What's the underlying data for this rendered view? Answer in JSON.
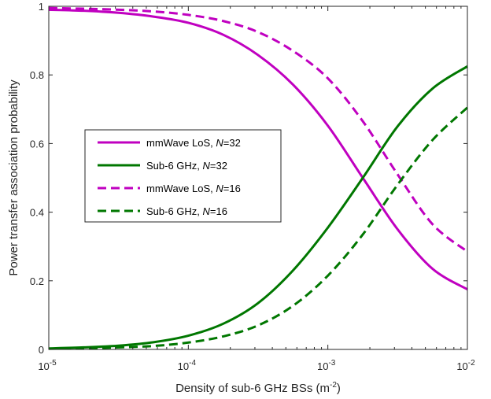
{
  "chart_data": {
    "type": "line",
    "title": "",
    "xlabel": "Density of sub-6 GHz BSs (m",
    "xlabel_sup": "-2",
    "xlabel_close": ")",
    "ylabel": "Power transfer association probability",
    "xscale": "log",
    "xlim": [
      1e-05,
      0.01
    ],
    "ylim": [
      0,
      1
    ],
    "x_ticks": [
      {
        "value": 1e-05,
        "base": "10",
        "exp": "-5"
      },
      {
        "value": 0.0001,
        "base": "10",
        "exp": "-4"
      },
      {
        "value": 0.001,
        "base": "10",
        "exp": "-3"
      },
      {
        "value": 0.01,
        "base": "10",
        "exp": "-2"
      }
    ],
    "y_ticks": [
      {
        "value": 0,
        "label": "0"
      },
      {
        "value": 0.2,
        "label": "0.2"
      },
      {
        "value": 0.4,
        "label": "0.4"
      },
      {
        "value": 0.6,
        "label": "0.6"
      },
      {
        "value": 0.8,
        "label": "0.8"
      },
      {
        "value": 1,
        "label": "1"
      }
    ],
    "grid": false,
    "legend_position": "left-center",
    "x": [
      1e-05,
      1.78e-05,
      3.16e-05,
      5.62e-05,
      0.0001,
      0.000178,
      0.000316,
      0.000562,
      0.001,
      0.00178,
      0.00316,
      0.00562,
      0.01
    ],
    "series": [
      {
        "name_main": "mmWave LoS, ",
        "name_italic": "N",
        "name_tail": "=32",
        "color": "#c000c0",
        "dash": "solid",
        "values": [
          0.99,
          0.987,
          0.981,
          0.97,
          0.952,
          0.917,
          0.858,
          0.772,
          0.652,
          0.5,
          0.35,
          0.235,
          0.175
        ]
      },
      {
        "name_main": "Sub-6 GHz, ",
        "name_italic": "N",
        "name_tail": "=32",
        "color": "#007700",
        "dash": "solid",
        "values": [
          0.003,
          0.006,
          0.011,
          0.021,
          0.04,
          0.075,
          0.135,
          0.23,
          0.355,
          0.5,
          0.65,
          0.76,
          0.825
        ]
      },
      {
        "name_main": "mmWave LoS, ",
        "name_italic": "N",
        "name_tail": "=16",
        "color": "#c000c0",
        "dash": "dashed",
        "values": [
          0.995,
          0.993,
          0.99,
          0.985,
          0.975,
          0.957,
          0.925,
          0.87,
          0.79,
          0.665,
          0.51,
          0.365,
          0.285
        ]
      },
      {
        "name_main": "Sub-6 GHz, ",
        "name_italic": "N",
        "name_tail": "=16",
        "color": "#007700",
        "dash": "dashed",
        "values": [
          0.002,
          0.003,
          0.006,
          0.01,
          0.02,
          0.038,
          0.07,
          0.127,
          0.215,
          0.335,
          0.48,
          0.61,
          0.705
        ]
      }
    ]
  }
}
